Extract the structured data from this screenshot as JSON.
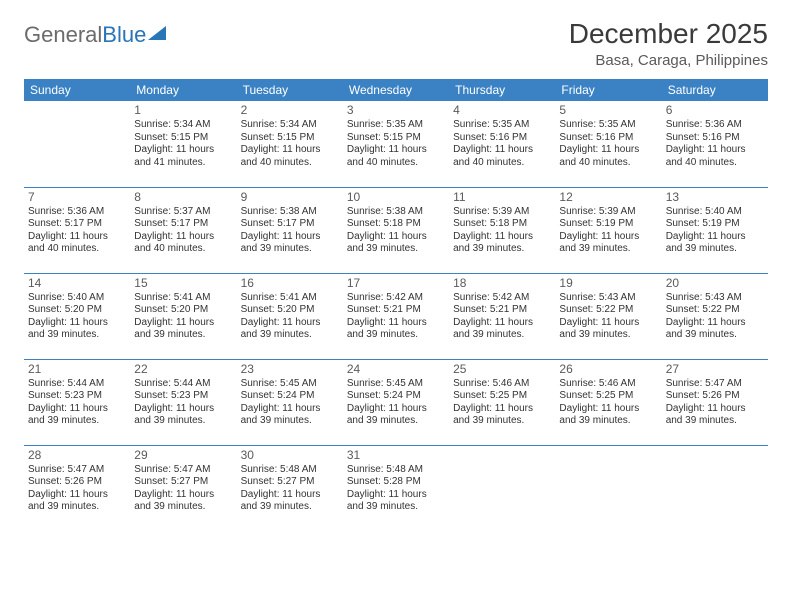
{
  "logo": {
    "text_general": "General",
    "text_blue": "Blue"
  },
  "header": {
    "month_title": "December 2025",
    "location": "Basa, Caraga, Philippines"
  },
  "colors": {
    "header_bg": "#3b82c4",
    "header_text": "#ffffff",
    "row_border": "#3b82c4",
    "body_text": "#333333",
    "logo_blue": "#2a74b8",
    "logo_grey": "#6b6b6b"
  },
  "weekdays": [
    "Sunday",
    "Monday",
    "Tuesday",
    "Wednesday",
    "Thursday",
    "Friday",
    "Saturday"
  ],
  "weeks": [
    [
      null,
      {
        "day": "1",
        "sunrise": "5:34 AM",
        "sunset": "5:15 PM",
        "daylight": "11 hours and 41 minutes."
      },
      {
        "day": "2",
        "sunrise": "5:34 AM",
        "sunset": "5:15 PM",
        "daylight": "11 hours and 40 minutes."
      },
      {
        "day": "3",
        "sunrise": "5:35 AM",
        "sunset": "5:15 PM",
        "daylight": "11 hours and 40 minutes."
      },
      {
        "day": "4",
        "sunrise": "5:35 AM",
        "sunset": "5:16 PM",
        "daylight": "11 hours and 40 minutes."
      },
      {
        "day": "5",
        "sunrise": "5:35 AM",
        "sunset": "5:16 PM",
        "daylight": "11 hours and 40 minutes."
      },
      {
        "day": "6",
        "sunrise": "5:36 AM",
        "sunset": "5:16 PM",
        "daylight": "11 hours and 40 minutes."
      }
    ],
    [
      {
        "day": "7",
        "sunrise": "5:36 AM",
        "sunset": "5:17 PM",
        "daylight": "11 hours and 40 minutes."
      },
      {
        "day": "8",
        "sunrise": "5:37 AM",
        "sunset": "5:17 PM",
        "daylight": "11 hours and 40 minutes."
      },
      {
        "day": "9",
        "sunrise": "5:38 AM",
        "sunset": "5:17 PM",
        "daylight": "11 hours and 39 minutes."
      },
      {
        "day": "10",
        "sunrise": "5:38 AM",
        "sunset": "5:18 PM",
        "daylight": "11 hours and 39 minutes."
      },
      {
        "day": "11",
        "sunrise": "5:39 AM",
        "sunset": "5:18 PM",
        "daylight": "11 hours and 39 minutes."
      },
      {
        "day": "12",
        "sunrise": "5:39 AM",
        "sunset": "5:19 PM",
        "daylight": "11 hours and 39 minutes."
      },
      {
        "day": "13",
        "sunrise": "5:40 AM",
        "sunset": "5:19 PM",
        "daylight": "11 hours and 39 minutes."
      }
    ],
    [
      {
        "day": "14",
        "sunrise": "5:40 AM",
        "sunset": "5:20 PM",
        "daylight": "11 hours and 39 minutes."
      },
      {
        "day": "15",
        "sunrise": "5:41 AM",
        "sunset": "5:20 PM",
        "daylight": "11 hours and 39 minutes."
      },
      {
        "day": "16",
        "sunrise": "5:41 AM",
        "sunset": "5:20 PM",
        "daylight": "11 hours and 39 minutes."
      },
      {
        "day": "17",
        "sunrise": "5:42 AM",
        "sunset": "5:21 PM",
        "daylight": "11 hours and 39 minutes."
      },
      {
        "day": "18",
        "sunrise": "5:42 AM",
        "sunset": "5:21 PM",
        "daylight": "11 hours and 39 minutes."
      },
      {
        "day": "19",
        "sunrise": "5:43 AM",
        "sunset": "5:22 PM",
        "daylight": "11 hours and 39 minutes."
      },
      {
        "day": "20",
        "sunrise": "5:43 AM",
        "sunset": "5:22 PM",
        "daylight": "11 hours and 39 minutes."
      }
    ],
    [
      {
        "day": "21",
        "sunrise": "5:44 AM",
        "sunset": "5:23 PM",
        "daylight": "11 hours and 39 minutes."
      },
      {
        "day": "22",
        "sunrise": "5:44 AM",
        "sunset": "5:23 PM",
        "daylight": "11 hours and 39 minutes."
      },
      {
        "day": "23",
        "sunrise": "5:45 AM",
        "sunset": "5:24 PM",
        "daylight": "11 hours and 39 minutes."
      },
      {
        "day": "24",
        "sunrise": "5:45 AM",
        "sunset": "5:24 PM",
        "daylight": "11 hours and 39 minutes."
      },
      {
        "day": "25",
        "sunrise": "5:46 AM",
        "sunset": "5:25 PM",
        "daylight": "11 hours and 39 minutes."
      },
      {
        "day": "26",
        "sunrise": "5:46 AM",
        "sunset": "5:25 PM",
        "daylight": "11 hours and 39 minutes."
      },
      {
        "day": "27",
        "sunrise": "5:47 AM",
        "sunset": "5:26 PM",
        "daylight": "11 hours and 39 minutes."
      }
    ],
    [
      {
        "day": "28",
        "sunrise": "5:47 AM",
        "sunset": "5:26 PM",
        "daylight": "11 hours and 39 minutes."
      },
      {
        "day": "29",
        "sunrise": "5:47 AM",
        "sunset": "5:27 PM",
        "daylight": "11 hours and 39 minutes."
      },
      {
        "day": "30",
        "sunrise": "5:48 AM",
        "sunset": "5:27 PM",
        "daylight": "11 hours and 39 minutes."
      },
      {
        "day": "31",
        "sunrise": "5:48 AM",
        "sunset": "5:28 PM",
        "daylight": "11 hours and 39 minutes."
      },
      null,
      null,
      null
    ]
  ],
  "labels": {
    "sunrise_prefix": "Sunrise: ",
    "sunset_prefix": "Sunset: ",
    "daylight_prefix": "Daylight: "
  }
}
